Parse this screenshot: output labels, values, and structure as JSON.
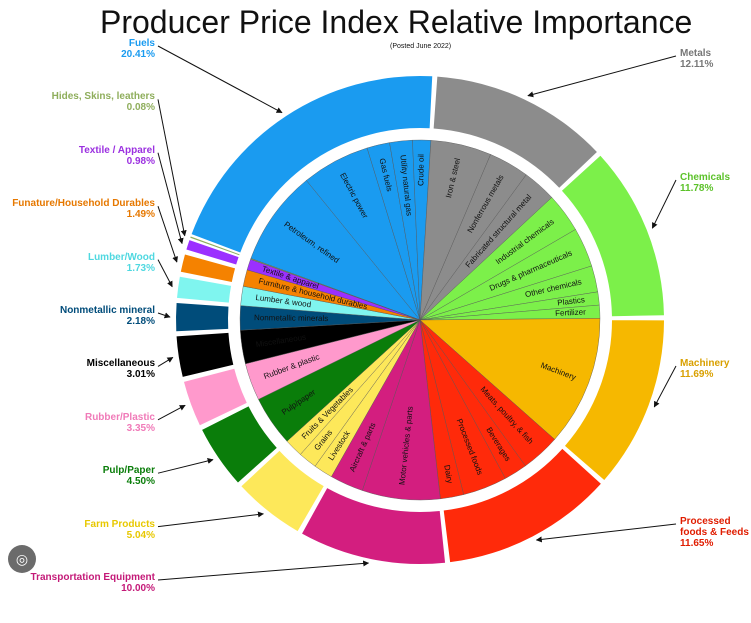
{
  "title": "Producer Price Index Relative Importance",
  "subtitle": "(Posted June 2022)",
  "chart_data": {
    "type": "pie",
    "title": "Producer Price Index Relative Importance",
    "subtitle": "(Posted June 2022)",
    "categories": [
      {
        "name": "Fuels",
        "value": 20.41,
        "label": "20.41%",
        "color": "#1a9bf0",
        "text_color": "#1a9bf0",
        "sub": [
          {
            "name": "Petroleum, refined",
            "share": 0.42
          },
          {
            "name": "Electric power",
            "share": 0.3
          },
          {
            "name": "Gas fuels",
            "share": 0.1
          },
          {
            "name": "Utility natural gas",
            "share": 0.1
          },
          {
            "name": "Crude oil",
            "share": 0.08
          }
        ]
      },
      {
        "name": "Metals",
        "value": 12.11,
        "label": "12.11%",
        "color": "#8c8c8c",
        "text_color": "#777777",
        "sub": [
          {
            "name": "Iron & steel",
            "share": 0.45
          },
          {
            "name": "Nonferrous metals",
            "share": 0.3
          },
          {
            "name": "Fabricated structural metal",
            "share": 0.25
          }
        ]
      },
      {
        "name": "Chemicals",
        "value": 11.78,
        "label": "11.78%",
        "color": "#7cf04a",
        "text_color": "#5cc22a",
        "sub": [
          {
            "name": "Industrial chemicals",
            "share": 0.3
          },
          {
            "name": "Drugs & pharmaceuticals",
            "share": 0.3
          },
          {
            "name": "Other chemicals",
            "share": 0.2
          },
          {
            "name": "Plastics",
            "share": 0.1
          },
          {
            "name": "Fertilizer",
            "share": 0.1
          }
        ]
      },
      {
        "name": "Machinery",
        "value": 11.69,
        "label": "11.69%",
        "color": "#f6b800",
        "text_color": "#d9a000",
        "sub": [
          {
            "name": "Machinery",
            "share": 1.0
          }
        ]
      },
      {
        "name": "Processed foods & Feeds",
        "value": 11.65,
        "label": "11.65%",
        "color": "#ff2a0a",
        "text_color": "#e01c00",
        "sub": [
          {
            "name": "Meats, poultry, & fish",
            "share": 0.3
          },
          {
            "name": "Beverages",
            "share": 0.18
          },
          {
            "name": "Processed foods",
            "share": 0.34
          },
          {
            "name": "Dairy",
            "share": 0.18
          }
        ]
      },
      {
        "name": "Transportation Equipment",
        "value": 10.0,
        "label": "10.00%",
        "color": "#d31e7f",
        "text_color": "#c41a78",
        "sub": [
          {
            "name": "Motor vehicles & parts",
            "share": 0.7
          },
          {
            "name": "Aircraft & parts",
            "share": 0.3
          }
        ]
      },
      {
        "name": "Farm Products",
        "value": 5.04,
        "label": "5.04%",
        "color": "#fde85a",
        "text_color": "#e8c800",
        "sub": [
          {
            "name": "Livestock",
            "share": 0.34
          },
          {
            "name": "Grains",
            "share": 0.33
          },
          {
            "name": "Fruits & Vegetables",
            "share": 0.33
          }
        ]
      },
      {
        "name": "Pulp/Paper",
        "value": 4.5,
        "label": "4.50%",
        "color": "#0a7d0a",
        "text_color": "#0a7d0a",
        "sub": [
          {
            "name": "Pulp/paper",
            "share": 1.0
          }
        ]
      },
      {
        "name": "Rubber/Plastic",
        "value": 3.35,
        "label": "3.35%",
        "color": "#ff99cc",
        "text_color": "#f07ab8",
        "sub": [
          {
            "name": "Rubber & plastic",
            "share": 1.0
          }
        ]
      },
      {
        "name": "Miscellaneous",
        "value": 3.01,
        "label": "3.01%",
        "color": "#000000",
        "text_color": "#000000",
        "sub": [
          {
            "name": "Miscellaneous",
            "share": 1.0
          }
        ]
      },
      {
        "name": "Nonmetallic mineral",
        "value": 2.18,
        "label": "2.18%",
        "color": "#004c7a",
        "text_color": "#004c7a",
        "sub": [
          {
            "name": "Nonmetallic minerals",
            "share": 1.0
          }
        ]
      },
      {
        "name": "Lumber/Wood",
        "value": 1.73,
        "label": "1.73%",
        "color": "#7ff5ef",
        "text_color": "#4fd8e0",
        "sub": [
          {
            "name": "Lumber & wood",
            "share": 1.0
          }
        ]
      },
      {
        "name": "Funature/Household Durables",
        "value": 1.49,
        "label": "1.49%",
        "color": "#f58200",
        "text_color": "#e67800",
        "sub": [
          {
            "name": "Furniture & household durables",
            "share": 1.0
          }
        ]
      },
      {
        "name": "Textile / Apparel",
        "value": 0.98,
        "label": "0.98%",
        "color": "#9b30ff",
        "text_color": "#9b30e0",
        "sub": [
          {
            "name": "Textile & apparel",
            "share": 1.0
          }
        ]
      },
      {
        "name": "Hides, Skins, leathers",
        "value": 0.08,
        "label": "0.08%",
        "color": "#8fae5c",
        "text_color": "#8fae5c",
        "sub": []
      }
    ]
  }
}
